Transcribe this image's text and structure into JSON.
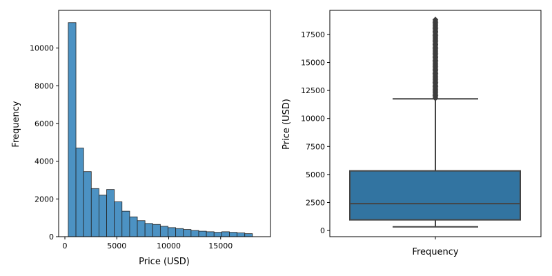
{
  "chart_data": [
    {
      "type": "histogram",
      "title": "",
      "xlabel": "Price (USD)",
      "ylabel": "Frequency",
      "xlim": [
        -600,
        19800
      ],
      "ylim": [
        0,
        12000
      ],
      "xticks": [
        0,
        5000,
        10000,
        15000
      ],
      "yticks": [
        0,
        2000,
        4000,
        6000,
        8000,
        10000
      ],
      "bin_start": 326,
      "bin_width": 739,
      "values": [
        11350,
        4700,
        3450,
        2550,
        2200,
        2500,
        1850,
        1350,
        1050,
        850,
        700,
        650,
        550,
        480,
        430,
        380,
        330,
        290,
        260,
        230,
        260,
        230,
        200,
        160
      ],
      "color": "#4c92c3",
      "edge_color": "#222222",
      "grid": false
    },
    {
      "type": "box",
      "title": "",
      "xlabel": "Frequency",
      "ylabel": "Price (USD)",
      "ylim": [
        -550,
        19650
      ],
      "yticks": [
        0,
        2500,
        5000,
        7500,
        10000,
        12500,
        15000,
        17500
      ],
      "whisker_low": 326,
      "q1": 950,
      "median": 2401,
      "q3": 5324,
      "whisker_high": 11750,
      "outlier_range": [
        11800,
        18823
      ],
      "color": "#3274a1",
      "line_color": "#444444",
      "grid": false
    }
  ]
}
